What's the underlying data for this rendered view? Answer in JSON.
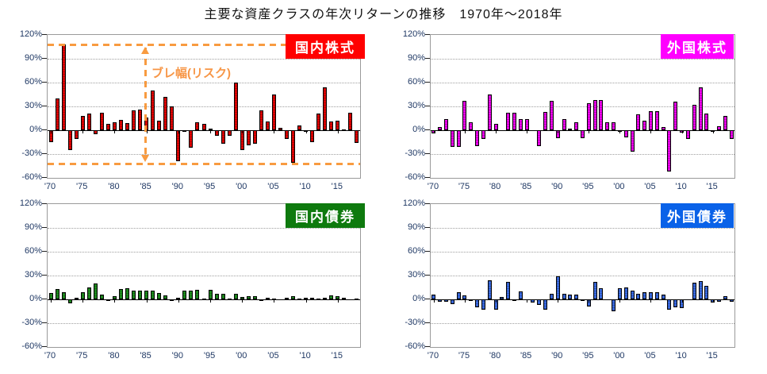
{
  "title": "主要な資産クラスの年次リターンの推移　1970年～2018年",
  "axis": {
    "ylim": [
      -60,
      120
    ],
    "ytick_step": 30,
    "yticks": [
      120,
      90,
      60,
      30,
      0,
      -30,
      -60
    ],
    "ytick_labels": [
      "120%",
      "90%",
      "60%",
      "30%",
      "0%",
      "-30%",
      "-60%"
    ],
    "xtick_years": [
      1970,
      1975,
      1980,
      1985,
      1990,
      1995,
      2000,
      2005,
      2010,
      2015
    ],
    "xtick_labels": [
      "'70",
      "'75",
      "'80",
      "'85",
      "'90",
      "'95",
      "'00",
      "'05",
      "'10",
      "'15"
    ],
    "grid": "dotted horizontal every 30%, solid black zero line"
  },
  "years": [
    1970,
    1971,
    1972,
    1973,
    1974,
    1975,
    1976,
    1977,
    1978,
    1979,
    1980,
    1981,
    1982,
    1983,
    1984,
    1985,
    1986,
    1987,
    1988,
    1989,
    1990,
    1991,
    1992,
    1993,
    1994,
    1995,
    1996,
    1997,
    1998,
    1999,
    2000,
    2001,
    2002,
    2003,
    2004,
    2005,
    2006,
    2007,
    2008,
    2009,
    2010,
    2011,
    2012,
    2013,
    2014,
    2015,
    2016,
    2017,
    2018
  ],
  "annotation": {
    "label": "ブレ幅(リスク)",
    "upper_line_pct": 108,
    "lower_line_pct": -42,
    "color": "#F89B40",
    "applies_to": "国内株式"
  },
  "chart_data": [
    {
      "type": "bar",
      "name": "domestic-stocks",
      "title": "国内株式",
      "legend_color": "#FF0000",
      "bar_color": "#DF0000",
      "values": [
        -15,
        40,
        108,
        -25,
        -11,
        18,
        21,
        -5,
        22,
        8,
        10,
        13,
        9,
        25,
        26,
        16,
        50,
        12,
        42,
        30,
        -39,
        -1,
        -22,
        10,
        8,
        2,
        -7,
        -17,
        -7,
        60,
        -25,
        -19,
        -17,
        25,
        11,
        45,
        3,
        -11,
        -41,
        6,
        -2,
        -15,
        21,
        54,
        11,
        12,
        1,
        22,
        -16
      ]
    },
    {
      "type": "bar",
      "name": "foreign-stocks",
      "title": "外国株式",
      "legend_color": "#FF00FF",
      "bar_color": "#EE00EE",
      "values": [
        -4,
        4,
        14,
        -21,
        -21,
        37,
        10,
        -20,
        -11,
        45,
        8,
        0,
        22,
        22,
        14,
        14,
        0,
        -20,
        23,
        37,
        -10,
        14,
        2,
        10,
        -10,
        34,
        38,
        38,
        10,
        10,
        -1,
        -9,
        -27,
        20,
        12,
        24,
        24,
        4,
        -52,
        36,
        -3,
        -11,
        32,
        54,
        21,
        -1,
        5,
        18,
        -11
      ]
    },
    {
      "type": "bar",
      "name": "domestic-bonds",
      "title": "国内債券",
      "legend_color": "#0E7A0E",
      "bar_color": "#1E8C1E",
      "values": [
        8,
        13,
        9,
        -5,
        2,
        9,
        15,
        20,
        6,
        -2,
        4,
        13,
        14,
        11,
        11,
        11,
        11,
        8,
        5,
        -1,
        2,
        11,
        11,
        12,
        1,
        12,
        7,
        7,
        1,
        7,
        3,
        4,
        4,
        -2,
        2,
        1,
        0,
        2,
        4,
        1,
        2,
        2,
        1,
        2,
        5,
        4,
        2,
        0,
        1
      ]
    },
    {
      "type": "bar",
      "name": "foreign-bonds",
      "title": "外国債券",
      "legend_color": "#0A62E8",
      "bar_color": "#3A6AE0",
      "values": [
        6,
        -3,
        -3,
        -6,
        9,
        5,
        -2,
        -10,
        -13,
        24,
        -13,
        3,
        22,
        -2,
        10,
        0,
        -4,
        -7,
        -13,
        7,
        29,
        7,
        6,
        6,
        -2,
        -9,
        22,
        14,
        0,
        -15,
        14,
        15,
        11,
        7,
        9,
        9,
        9,
        6,
        -13,
        -10,
        -11,
        0,
        21,
        23,
        17,
        -4,
        -3,
        4,
        -3
      ]
    }
  ]
}
